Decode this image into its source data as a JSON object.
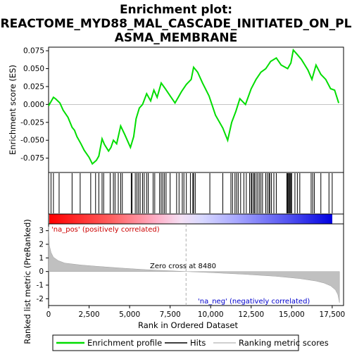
{
  "chart_data": {
    "type": "line",
    "title_lines": [
      "Enrichment plot:",
      "REACTOME_MYD88_MAL_CASCADE_INITIATED_ON_PL",
      "ASMA_MEMBRANE"
    ],
    "top_panel": {
      "ylabel": "Enrichment score (ES)",
      "ylim": [
        -0.095,
        0.08
      ],
      "yticks": [
        0.075,
        0.05,
        0.025,
        0.0,
        -0.025,
        -0.05,
        -0.075
      ],
      "ytick_labels": [
        "0.075",
        "0.050",
        "0.025",
        "0.000",
        "-0.025",
        "-0.050",
        "-0.075"
      ],
      "series": [
        {
          "name": "Enrichment profile",
          "color": "#00dd00",
          "x": [
            0,
            300,
            420,
            700,
            900,
            1200,
            1450,
            1600,
            1750,
            2000,
            2200,
            2500,
            2700,
            2950,
            3100,
            3300,
            3450,
            3700,
            3850,
            4000,
            4200,
            4450,
            4700,
            5050,
            5250,
            5400,
            5600,
            5800,
            6050,
            6300,
            6500,
            6700,
            6950,
            7200,
            7500,
            7800,
            8000,
            8200,
            8500,
            8800,
            8950,
            9200,
            9500,
            9900,
            10300,
            10750,
            11050,
            11300,
            11550,
            11800,
            12150,
            12500,
            12800,
            13100,
            13400,
            13700,
            14050,
            14350,
            14750,
            14950,
            15100,
            15300,
            15600,
            16000,
            16250,
            16500,
            16800,
            17100,
            17400,
            17650,
            17900
          ],
          "values": [
            -0.002,
            0.01,
            0.008,
            0.002,
            -0.008,
            -0.018,
            -0.032,
            -0.036,
            -0.045,
            -0.055,
            -0.064,
            -0.074,
            -0.083,
            -0.078,
            -0.072,
            -0.048,
            -0.056,
            -0.065,
            -0.06,
            -0.05,
            -0.055,
            -0.03,
            -0.042,
            -0.06,
            -0.045,
            -0.02,
            -0.005,
            0.0,
            0.015,
            0.005,
            0.02,
            0.01,
            0.03,
            0.022,
            0.012,
            0.002,
            0.01,
            0.018,
            0.028,
            0.035,
            0.052,
            0.045,
            0.03,
            0.012,
            -0.015,
            -0.033,
            -0.05,
            -0.025,
            -0.01,
            0.008,
            0.0,
            0.022,
            0.035,
            0.045,
            0.05,
            0.06,
            0.065,
            0.055,
            0.05,
            0.058,
            0.076,
            0.071,
            0.063,
            0.048,
            0.035,
            0.055,
            0.042,
            0.035,
            0.022,
            0.02,
            0.002
          ]
        }
      ]
    },
    "hits": [
      150,
      300,
      650,
      1450,
      1950,
      2600,
      2900,
      3100,
      3300,
      3400,
      3800,
      4000,
      4100,
      4300,
      4450,
      4550,
      5100,
      5150,
      5350,
      5450,
      5550,
      5650,
      5800,
      5900,
      6050,
      6150,
      6450,
      6550,
      6850,
      6950,
      7050,
      7150,
      7250,
      7500,
      7900,
      8050,
      8250,
      8350,
      8500,
      8750,
      8900,
      8950,
      9050,
      9950,
      10750,
      11250,
      11350,
      11500,
      11600,
      11700,
      11850,
      12050,
      12200,
      12400,
      12500,
      12550,
      12650,
      12700,
      12800,
      12900,
      13000,
      13100,
      13200,
      13400,
      13500,
      13600,
      13650,
      13750,
      13900,
      14050,
      14700,
      14750,
      14800,
      14850,
      14900,
      14950,
      15000,
      15200,
      15350,
      15500,
      16200,
      16300,
      16400,
      16800,
      17300,
      17500
    ],
    "bottom_panel": {
      "ylabel": "Ranked list metric (PreRanked)",
      "ylim": [
        -2.5,
        3.5
      ],
      "yticks": [
        3,
        2,
        1,
        0,
        -1,
        -2
      ],
      "ytick_labels": [
        "3",
        "2",
        "1",
        "0",
        "-1",
        "-2"
      ],
      "metric_x": [
        0,
        50,
        150,
        300,
        600,
        1000,
        2000,
        3000,
        4500,
        6000,
        8480,
        10000,
        12000,
        14000,
        15500,
        16500,
        17000,
        17400,
        17700,
        17850,
        17950
      ],
      "metric_values": [
        3.3,
        1.9,
        1.4,
        1.05,
        0.8,
        0.62,
        0.48,
        0.38,
        0.25,
        0.14,
        0.0,
        -0.08,
        -0.2,
        -0.35,
        -0.52,
        -0.7,
        -0.85,
        -1.05,
        -1.35,
        -1.7,
        -2.3
      ],
      "zero_cross_label": "Zero cross at 8480",
      "zero_cross": 8480,
      "pos_label": "'na_pos' (positively correlated)",
      "neg_label": "'na_neg' (negatively correlated)"
    },
    "xlabel": "Rank in Ordered Dataset",
    "xlim": [
      0,
      18200
    ],
    "xticks": [
      0,
      2500,
      5000,
      7500,
      10000,
      12500,
      15000,
      17500
    ],
    "xtick_labels": [
      "0",
      "2,500",
      "5,000",
      "7,500",
      "10,000",
      "12,500",
      "15,000",
      "17,500"
    ],
    "legend": [
      {
        "label": "Enrichment profile",
        "color": "#00dd00"
      },
      {
        "label": "Hits",
        "color": "#000000"
      },
      {
        "label": "Ranking metric scores",
        "color": "#c0c0c0"
      }
    ]
  }
}
